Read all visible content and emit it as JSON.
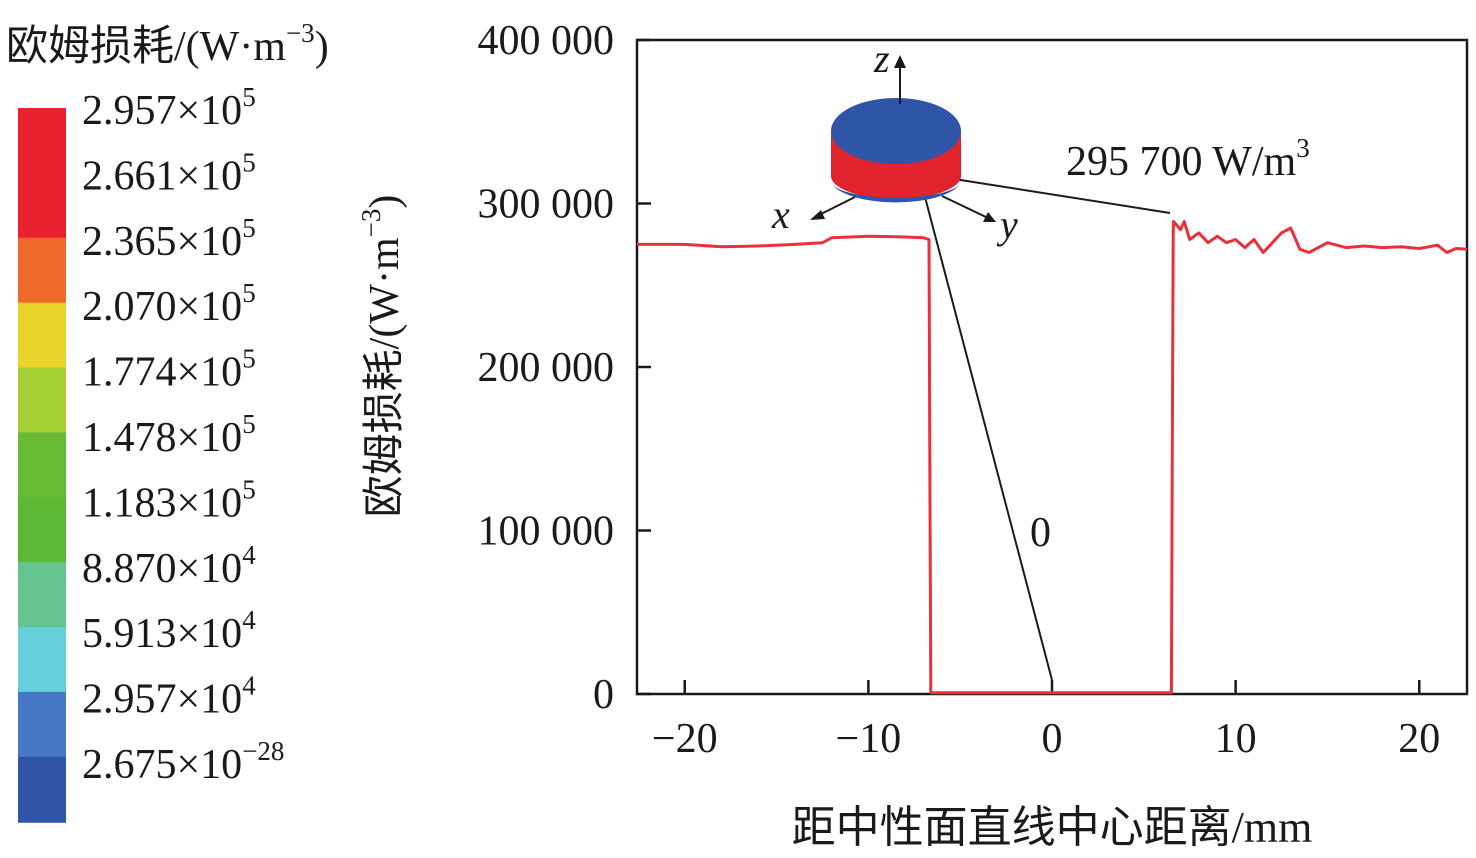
{
  "legend": {
    "title": "欧姆损耗/(W·m",
    "title_sup": "−3",
    "title_end": ")",
    "swatch_colors": [
      "#e8232f",
      "#e8232f",
      "#ef6a2a",
      "#e8d42a",
      "#a6cf33",
      "#68bb35",
      "#5db935",
      "#66c490",
      "#66cfdc",
      "#4678c8",
      "#3054a8"
    ],
    "entries": [
      {
        "mantissa": "2.957×10",
        "exponent": "5"
      },
      {
        "mantissa": "2.661×10",
        "exponent": "5"
      },
      {
        "mantissa": "2.365×10",
        "exponent": "5"
      },
      {
        "mantissa": "2.070×10",
        "exponent": "5"
      },
      {
        "mantissa": "1.774×10",
        "exponent": "5"
      },
      {
        "mantissa": "1.478×10",
        "exponent": "5"
      },
      {
        "mantissa": "1.183×10",
        "exponent": "5"
      },
      {
        "mantissa": "8.870×10",
        "exponent": "4"
      },
      {
        "mantissa": "5.913×10",
        "exponent": "4"
      },
      {
        "mantissa": "2.957×10",
        "exponent": "4"
      },
      {
        "mantissa": "2.675×10",
        "exponent": "−28"
      }
    ]
  },
  "chart_data": {
    "type": "line",
    "xlabel": "距中性面直线中心距离/mm",
    "ylabel": "欧姆损耗/(W·m",
    "ylabel_sup": "−3",
    "ylabel_end": ")",
    "xlim": [
      -22.6,
      22.6
    ],
    "ylim": [
      0,
      400000
    ],
    "xticks": [
      -20,
      -10,
      0,
      10,
      20
    ],
    "xtick_labels": [
      "−20",
      "−10",
      "0",
      "10",
      "20"
    ],
    "yticks": [
      0,
      100000,
      200000,
      300000,
      400000
    ],
    "ytick_labels": [
      "0",
      "100 000",
      "200 000",
      "300 000",
      "400 000"
    ],
    "grid": false,
    "line_color": "#e8313a",
    "series": [
      {
        "x": [
          -22.6,
          -20,
          -18,
          -16,
          -14,
          -12.5,
          -12,
          -10,
          -8,
          -7,
          -6.7,
          -6.65,
          -6.6,
          -6.5,
          0,
          6.5,
          6.55,
          6.6,
          6.62,
          7,
          7.2,
          7.5,
          8,
          8.5,
          9,
          9.5,
          10,
          10.5,
          11,
          11.5,
          12,
          12.5,
          13,
          13.5,
          14,
          15,
          16,
          17,
          18,
          19,
          20,
          21,
          21.5,
          22,
          22.6
        ],
        "y": [
          275000,
          275000,
          273500,
          274000,
          275000,
          276000,
          279000,
          280000,
          279500,
          279000,
          278000,
          130000,
          1000,
          800,
          800,
          800,
          150000,
          283000,
          289000,
          284000,
          289000,
          278000,
          282000,
          276000,
          280000,
          276000,
          278000,
          273000,
          278000,
          270000,
          276000,
          282000,
          285000,
          272000,
          270000,
          276000,
          273000,
          274000,
          273000,
          273500,
          272500,
          274500,
          270000,
          272500,
          272000
        ]
      }
    ],
    "annotations": {
      "peak": {
        "value": "295 700 W/m",
        "sup": "3"
      },
      "zero": "0",
      "axes": {
        "z": "z",
        "x": "x",
        "y": "y"
      }
    }
  }
}
